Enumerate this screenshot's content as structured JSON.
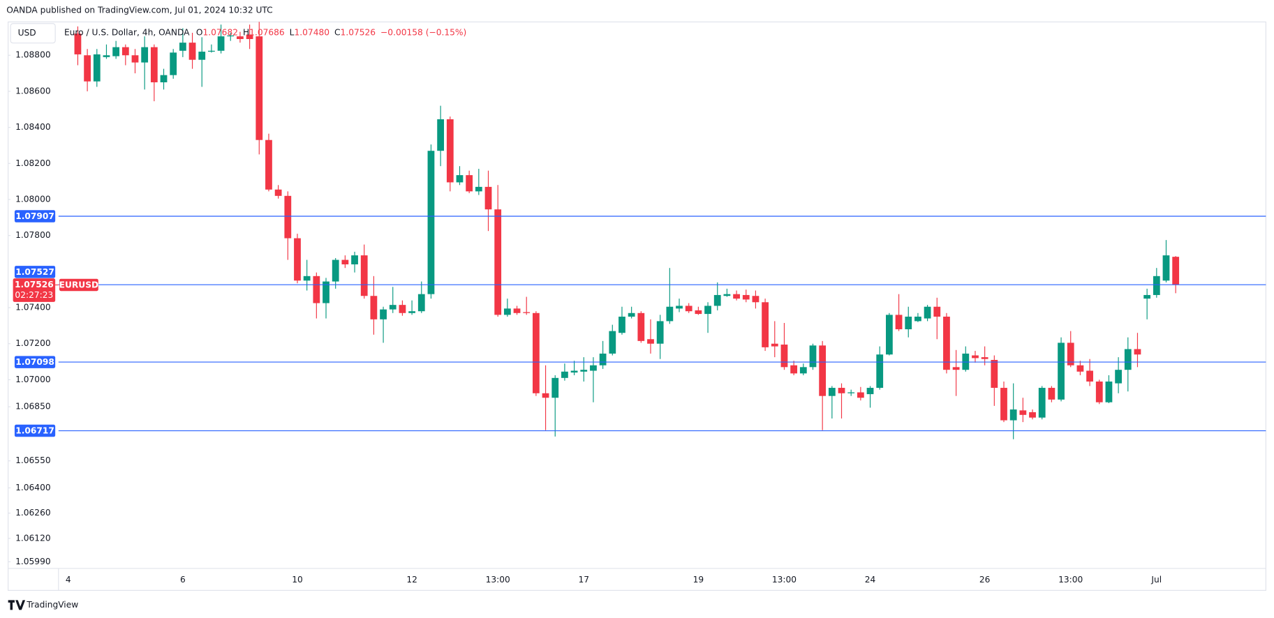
{
  "header": {
    "published": "OANDA published on TradingView.com, Jul 01, 2024 10:32 UTC",
    "currency": "USD",
    "footer_brand": "TradingView"
  },
  "chart_data": {
    "type": "candlestick",
    "title": "Euro / U.S. Dollar, 4h, OANDA",
    "legend": {
      "names": [
        "O",
        "H",
        "L",
        "C"
      ],
      "values": [
        "1.07682",
        "1.07686",
        "1.07480",
        "1.07526"
      ],
      "change": "−0.00158 (−0.15%)"
    },
    "up_color": "#089981",
    "down_color": "#f23645",
    "grid": false,
    "categories": [
      "4",
      null,
      null,
      null,
      null,
      null,
      null,
      null,
      null,
      null,
      null,
      null,
      "6",
      null,
      null,
      null,
      null,
      null,
      null,
      null,
      null,
      null,
      null,
      null,
      "10",
      null,
      null,
      null,
      null,
      null,
      null,
      null,
      null,
      null,
      null,
      null,
      "12",
      null,
      null,
      null,
      null,
      null,
      null,
      null,
      null,
      "13:00",
      null,
      null,
      null,
      null,
      null,
      null,
      null,
      null,
      "17",
      null,
      null,
      null,
      null,
      null,
      null,
      null,
      null,
      null,
      null,
      null,
      "19",
      null,
      null,
      null,
      null,
      null,
      null,
      null,
      null,
      "13:00",
      null,
      null,
      null,
      null,
      null,
      null,
      null,
      null,
      "24",
      null,
      null,
      null,
      null,
      null,
      null,
      null,
      null,
      null,
      null,
      null,
      "26",
      null,
      null,
      null,
      null,
      null,
      null,
      null,
      null,
      "13:00",
      null,
      null,
      null,
      null,
      null,
      null,
      null,
      null,
      "Jul",
      null,
      null
    ],
    "series": {
      "name": "EURUSD",
      "open": [
        null,
        1.0892,
        1.088,
        1.08655,
        1.0879,
        1.08795,
        1.08845,
        1.088,
        1.0876,
        1.08845,
        1.0865,
        1.0869,
        1.08825,
        1.0887,
        1.08775,
        1.0882,
        1.08825,
        1.08905,
        1.08905,
        1.08915,
        1.08905,
        1.0833,
        1.08055,
        1.0802,
        1.07785,
        1.0755,
        1.07575,
        1.07425,
        1.07545,
        1.07665,
        1.0764,
        1.0769,
        1.07465,
        1.07335,
        1.0739,
        1.07415,
        1.0737,
        1.0738,
        1.07475,
        1.0827,
        1.08445,
        1.08095,
        1.08135,
        1.08045,
        1.0807,
        1.07945,
        1.0736,
        1.07395,
        1.07375,
        1.0737,
        1.06925,
        1.069,
        1.0701,
        1.0704,
        1.07045,
        1.0705,
        1.0708,
        1.07145,
        1.0726,
        1.0735,
        1.0737,
        1.07225,
        1.072,
        1.07325,
        1.07395,
        1.0741,
        1.07385,
        1.07365,
        1.0741,
        1.07465,
        1.07475,
        1.0747,
        1.07465,
        1.0743,
        1.072,
        1.07195,
        1.0708,
        1.07035,
        1.0707,
        1.0719,
        1.0691,
        1.06955,
        1.06925,
        1.0693,
        1.0692,
        1.06955,
        1.0714,
        1.0736,
        1.0728,
        1.07325,
        1.0734,
        1.07405,
        1.0735,
        1.0707,
        1.07055,
        1.07135,
        1.07125,
        1.0711,
        1.06955,
        1.06775,
        1.0683,
        1.0682,
        1.0679,
        1.06955,
        1.0689,
        1.07205,
        1.0708,
        1.0705,
        1.0699,
        1.06875,
        1.0698,
        1.07055,
        1.0717,
        1.0745,
        1.0747,
        1.0755,
        1.07682
      ],
      "high": [
        null,
        1.0896,
        1.08835,
        1.08835,
        1.0886,
        1.0888,
        1.0886,
        1.08835,
        1.08905,
        1.0886,
        1.08725,
        1.08835,
        1.0895,
        1.08925,
        1.089,
        1.0886,
        1.0897,
        1.08925,
        1.0893,
        1.0897,
        1.0899,
        1.08365,
        1.0808,
        1.08045,
        1.0781,
        1.07665,
        1.07595,
        1.07565,
        1.07675,
        1.0769,
        1.0771,
        1.0775,
        1.07575,
        1.07405,
        1.07515,
        1.0744,
        1.0744,
        1.07545,
        1.08305,
        1.0852,
        1.0846,
        1.08185,
        1.0816,
        1.0817,
        1.0816,
        1.0808,
        1.0745,
        1.0741,
        1.0746,
        1.0738,
        1.0708,
        1.07025,
        1.0709,
        1.07105,
        1.07125,
        1.07125,
        1.07215,
        1.07305,
        1.07405,
        1.07405,
        1.0738,
        1.07335,
        1.0736,
        1.0762,
        1.0745,
        1.07425,
        1.07405,
        1.0743,
        1.0754,
        1.07505,
        1.07495,
        1.075,
        1.07495,
        1.0745,
        1.07325,
        1.07315,
        1.07105,
        1.0709,
        1.072,
        1.07215,
        1.06965,
        1.0698,
        1.06945,
        1.0696,
        1.06965,
        1.07185,
        1.0737,
        1.07475,
        1.07405,
        1.0737,
        1.07415,
        1.07455,
        1.0737,
        1.07165,
        1.07185,
        1.0716,
        1.07185,
        1.07135,
        1.0699,
        1.0698,
        1.069,
        1.06835,
        1.06965,
        1.06965,
        1.07235,
        1.0727,
        1.07105,
        1.07115,
        1.07,
        1.07025,
        1.07125,
        1.07235,
        1.0726,
        1.07505,
        1.0762,
        1.07775,
        1.07686
      ],
      "low": [
        null,
        1.08745,
        1.086,
        1.08625,
        1.0878,
        1.0878,
        1.08745,
        1.087,
        1.0861,
        1.08545,
        1.0861,
        1.0867,
        1.0879,
        1.08725,
        1.08625,
        1.08815,
        1.0881,
        1.0888,
        1.0887,
        1.08835,
        1.0825,
        1.08045,
        1.08005,
        1.07665,
        1.07535,
        1.07495,
        1.0734,
        1.0734,
        1.07505,
        1.0762,
        1.07595,
        1.0745,
        1.0725,
        1.07205,
        1.0737,
        1.07355,
        1.0736,
        1.0737,
        1.0745,
        1.08185,
        1.08045,
        1.0808,
        1.08035,
        1.08025,
        1.07825,
        1.0735,
        1.0735,
        1.0736,
        1.0736,
        1.0691,
        1.0672,
        1.06685,
        1.06995,
        1.07025,
        1.0699,
        1.06875,
        1.0706,
        1.07135,
        1.0725,
        1.0734,
        1.07205,
        1.07145,
        1.07115,
        1.0731,
        1.07375,
        1.0737,
        1.0736,
        1.0726,
        1.07385,
        1.0746,
        1.0744,
        1.0743,
        1.07395,
        1.0716,
        1.07125,
        1.07055,
        1.07025,
        1.07025,
        1.07055,
        1.0672,
        1.06785,
        1.06785,
        1.0691,
        1.06885,
        1.06845,
        1.06945,
        1.07135,
        1.0727,
        1.07235,
        1.0732,
        1.07325,
        1.07225,
        1.07035,
        1.0691,
        1.07045,
        1.07095,
        1.0708,
        1.06855,
        1.06765,
        1.0667,
        1.06765,
        1.0678,
        1.0678,
        1.06875,
        1.0688,
        1.0707,
        1.07025,
        1.06965,
        1.06865,
        1.0687,
        1.06925,
        1.06935,
        1.0707,
        1.07335,
        1.07455,
        1.0754,
        1.0748
      ],
      "close": [
        null,
        1.08805,
        1.08655,
        1.08805,
        1.088,
        1.08845,
        1.088,
        1.0876,
        1.08845,
        1.0865,
        1.0869,
        1.08815,
        1.0887,
        1.08775,
        1.0882,
        1.08825,
        1.08905,
        1.0891,
        1.0889,
        1.0889,
        1.0833,
        1.08055,
        1.0802,
        1.07785,
        1.0755,
        1.07575,
        1.07425,
        1.07545,
        1.07665,
        1.0764,
        1.0769,
        1.07465,
        1.07335,
        1.0739,
        1.07415,
        1.0737,
        1.0738,
        1.07475,
        1.0827,
        1.08445,
        1.08095,
        1.08135,
        1.08045,
        1.0807,
        1.07945,
        1.0736,
        1.07395,
        1.0737,
        1.0737,
        1.06925,
        1.069,
        1.0701,
        1.07045,
        1.0705,
        1.07055,
        1.0708,
        1.07145,
        1.0727,
        1.0735,
        1.0737,
        1.07215,
        1.072,
        1.07325,
        1.07405,
        1.0741,
        1.0738,
        1.07365,
        1.0741,
        1.0747,
        1.07475,
        1.0745,
        1.07445,
        1.0743,
        1.0718,
        1.07185,
        1.0707,
        1.07035,
        1.0707,
        1.0719,
        1.0691,
        1.06955,
        1.06925,
        1.0693,
        1.069,
        1.06955,
        1.0714,
        1.0736,
        1.0728,
        1.0735,
        1.0735,
        1.07405,
        1.0735,
        1.07055,
        1.07055,
        1.07145,
        1.0712,
        1.07115,
        1.06955,
        1.06775,
        1.06835,
        1.06805,
        1.0679,
        1.06955,
        1.0689,
        1.07205,
        1.0708,
        1.07045,
        1.0699,
        1.06875,
        1.0699,
        1.07055,
        1.0717,
        1.0714,
        1.0747,
        1.07575,
        1.0769,
        1.07526
      ]
    },
    "ylim": [
      1.05953,
      1.08985
    ],
    "yticks": [
      {
        "value": 1.088,
        "label": "1.08800"
      },
      {
        "value": 1.086,
        "label": "1.08600"
      },
      {
        "value": 1.084,
        "label": "1.08400"
      },
      {
        "value": 1.082,
        "label": "1.08200"
      },
      {
        "value": 1.08,
        "label": "1.08000"
      },
      {
        "value": 1.078,
        "label": "1.07800"
      },
      {
        "value": 1.074,
        "label": "1.07400"
      },
      {
        "value": 1.072,
        "label": "1.07200"
      },
      {
        "value": 1.07,
        "label": "1.07000"
      },
      {
        "value": 1.0685,
        "label": "1.06850"
      },
      {
        "value": 1.0655,
        "label": "1.06550"
      },
      {
        "value": 1.064,
        "label": "1.06400"
      },
      {
        "value": 1.0626,
        "label": "1.06260"
      },
      {
        "value": 1.0612,
        "label": "1.06120"
      },
      {
        "value": 1.0599,
        "label": "1.05990"
      }
    ],
    "price_lines": [
      {
        "value": 1.07907,
        "label": "1.07907"
      },
      {
        "value": 1.07527,
        "label": "1.07527"
      },
      {
        "value": 1.07098,
        "label": "1.07098"
      },
      {
        "value": 1.06717,
        "label": "1.06717"
      }
    ],
    "price_line_color": "#2962ff",
    "last_price": {
      "value": 1.07526,
      "label": "1.07526",
      "countdown": "02:27:23",
      "symbol": "EURUSD"
    }
  }
}
